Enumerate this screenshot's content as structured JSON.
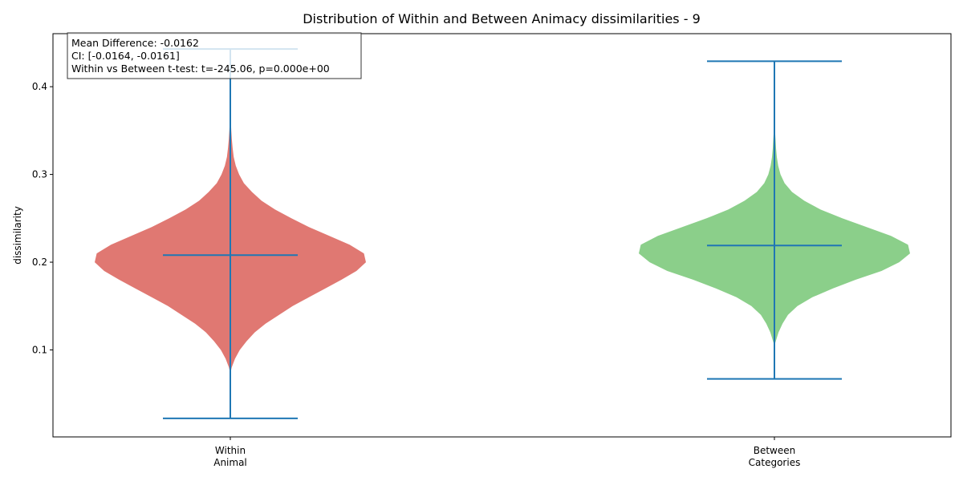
{
  "chart_data": {
    "type": "violin",
    "title": "Distribution of Within and Between Animacy dissimilarities - 9",
    "xlabel": "",
    "ylabel": "dissimilarity",
    "ylim": [
      0.0,
      0.465
    ],
    "yticks": [
      0.1,
      0.2,
      0.3,
      0.4
    ],
    "ytick_labels": [
      "0.1",
      "0.2",
      "0.3",
      "0.4"
    ],
    "grid": false,
    "colors": {
      "violin_line": "#1f77b4",
      "axis": "#000000"
    },
    "series": [
      {
        "category_lines": [
          "Within",
          "Animal"
        ],
        "color": "#e07872",
        "min": 0.022,
        "max": 0.443,
        "median": 0.208,
        "kde_min": 0.073,
        "kde_max": 0.371,
        "density_profile": [
          [
            0.073,
            0.0
          ],
          [
            0.08,
            0.01
          ],
          [
            0.09,
            0.035
          ],
          [
            0.1,
            0.07
          ],
          [
            0.11,
            0.12
          ],
          [
            0.12,
            0.18
          ],
          [
            0.13,
            0.26
          ],
          [
            0.14,
            0.36
          ],
          [
            0.15,
            0.46
          ],
          [
            0.16,
            0.58
          ],
          [
            0.17,
            0.7
          ],
          [
            0.18,
            0.82
          ],
          [
            0.19,
            0.93
          ],
          [
            0.2,
            1.0
          ],
          [
            0.21,
            0.985
          ],
          [
            0.22,
            0.88
          ],
          [
            0.23,
            0.73
          ],
          [
            0.24,
            0.58
          ],
          [
            0.25,
            0.45
          ],
          [
            0.26,
            0.33
          ],
          [
            0.27,
            0.23
          ],
          [
            0.28,
            0.16
          ],
          [
            0.29,
            0.1
          ],
          [
            0.3,
            0.065
          ],
          [
            0.31,
            0.04
          ],
          [
            0.32,
            0.025
          ],
          [
            0.33,
            0.017
          ],
          [
            0.34,
            0.011
          ],
          [
            0.35,
            0.007
          ],
          [
            0.36,
            0.004
          ],
          [
            0.371,
            0.0
          ]
        ]
      },
      {
        "category_lines": [
          "Between",
          "Categories"
        ],
        "color": "#8bcf8a",
        "min": 0.067,
        "max": 0.429,
        "median": 0.219,
        "kde_min": 0.105,
        "kde_max": 0.363,
        "density_profile": [
          [
            0.105,
            0.0
          ],
          [
            0.11,
            0.01
          ],
          [
            0.12,
            0.03
          ],
          [
            0.13,
            0.06
          ],
          [
            0.14,
            0.1
          ],
          [
            0.15,
            0.17
          ],
          [
            0.16,
            0.28
          ],
          [
            0.17,
            0.43
          ],
          [
            0.18,
            0.6
          ],
          [
            0.19,
            0.79
          ],
          [
            0.2,
            0.92
          ],
          [
            0.21,
            1.0
          ],
          [
            0.22,
            0.985
          ],
          [
            0.23,
            0.86
          ],
          [
            0.24,
            0.68
          ],
          [
            0.25,
            0.5
          ],
          [
            0.26,
            0.34
          ],
          [
            0.27,
            0.22
          ],
          [
            0.28,
            0.13
          ],
          [
            0.29,
            0.075
          ],
          [
            0.3,
            0.045
          ],
          [
            0.31,
            0.028
          ],
          [
            0.32,
            0.018
          ],
          [
            0.33,
            0.012
          ],
          [
            0.34,
            0.008
          ],
          [
            0.35,
            0.004
          ],
          [
            0.363,
            0.0
          ]
        ]
      }
    ],
    "annotation": {
      "lines": [
        "Mean Difference: -0.0162",
        "CI: [-0.0164, -0.0161]",
        "Within vs Between t-test: t=-245.06, p=0.000e+00"
      ]
    }
  }
}
